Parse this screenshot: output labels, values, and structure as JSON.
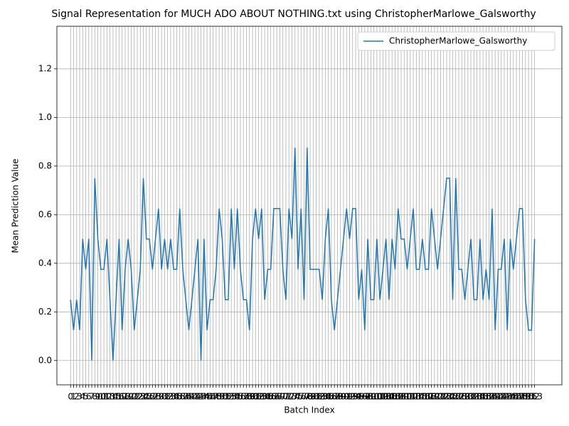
{
  "chart_data": {
    "type": "line",
    "title": "Signal Representation for MUCH ADO ABOUT NOTHING.txt using ChristopherMarlowe_Galsworthy",
    "xlabel": "Batch Index",
    "ylabel": "Mean Prediction Value",
    "x": [
      0,
      1,
      2,
      3,
      4,
      5,
      6,
      7,
      8,
      9,
      10,
      11,
      12,
      13,
      14,
      15,
      16,
      17,
      18,
      19,
      20,
      21,
      22,
      23,
      24,
      25,
      26,
      27,
      28,
      29,
      30,
      31,
      32,
      33,
      34,
      35,
      36,
      37,
      38,
      39,
      40,
      41,
      42,
      43,
      44,
      45,
      46,
      47,
      48,
      49,
      50,
      51,
      52,
      53,
      54,
      55,
      56,
      57,
      58,
      59,
      60,
      61,
      62,
      63,
      64,
      65,
      66,
      67,
      68,
      69,
      70,
      71,
      72,
      73,
      74,
      75,
      76,
      77,
      78,
      79,
      80,
      81,
      82,
      83,
      84,
      85,
      86,
      87,
      88,
      89,
      90,
      91,
      92,
      93,
      94,
      95,
      96,
      97,
      98,
      99,
      100,
      101,
      102,
      103,
      104,
      105,
      106,
      107,
      108,
      109,
      110,
      111,
      112,
      113,
      114,
      115,
      116,
      117,
      118,
      119,
      120,
      121,
      122,
      123,
      124,
      125,
      126,
      127,
      128,
      129,
      130,
      131,
      132,
      133,
      134,
      135,
      136,
      137,
      138,
      139,
      140,
      141,
      142,
      143,
      144,
      145,
      146,
      147,
      148,
      149,
      150,
      151,
      152,
      153
    ],
    "series": [
      {
        "name": "ChristopherMarlowe_Galsworthy",
        "color": "#1f77b4",
        "values": [
          0.25,
          0.125,
          0.25,
          0.125,
          0.5,
          0.375,
          0.5,
          0.0,
          0.75,
          0.5,
          0.375,
          0.375,
          0.5,
          0.25,
          0.0,
          0.25,
          0.5,
          0.125,
          0.375,
          0.5,
          0.375,
          0.125,
          0.25,
          0.375,
          0.75,
          0.5,
          0.5,
          0.375,
          0.5,
          0.625,
          0.375,
          0.5,
          0.375,
          0.5,
          0.375,
          0.375,
          0.625,
          0.375,
          0.25,
          0.125,
          0.25,
          0.375,
          0.5,
          0.0,
          0.5,
          0.125,
          0.25,
          0.25,
          0.375,
          0.625,
          0.5,
          0.25,
          0.25,
          0.625,
          0.375,
          0.625,
          0.375,
          0.25,
          0.25,
          0.125,
          0.5,
          0.625,
          0.5,
          0.625,
          0.25,
          0.375,
          0.375,
          0.625,
          0.625,
          0.625,
          0.375,
          0.25,
          0.625,
          0.5,
          0.875,
          0.375,
          0.625,
          0.25,
          0.875,
          0.375,
          0.375,
          0.375,
          0.375,
          0.25,
          0.5,
          0.625,
          0.25,
          0.125,
          0.25,
          0.375,
          0.5,
          0.625,
          0.5,
          0.625,
          0.625,
          0.25,
          0.375,
          0.125,
          0.5,
          0.25,
          0.25,
          0.5,
          0.25,
          0.375,
          0.5,
          0.25,
          0.5,
          0.375,
          0.625,
          0.5,
          0.5,
          0.375,
          0.5,
          0.625,
          0.375,
          0.375,
          0.5,
          0.375,
          0.375,
          0.625,
          0.5,
          0.375,
          0.5,
          0.625,
          0.75,
          0.75,
          0.25,
          0.75,
          0.375,
          0.375,
          0.25,
          0.375,
          0.5,
          0.25,
          0.25,
          0.5,
          0.25,
          0.375,
          0.25,
          0.625,
          0.125,
          0.375,
          0.375,
          0.5,
          0.125,
          0.5,
          0.375,
          0.5,
          0.625,
          0.625,
          0.25,
          0.125,
          0.125,
          0.5
        ]
      }
    ],
    "xlim": [
      -4.5,
      162
    ],
    "xticks": [
      0,
      1,
      2,
      3,
      4,
      5,
      6,
      7,
      8,
      9,
      10,
      11,
      12,
      13,
      14,
      15,
      16,
      17,
      18,
      19,
      20,
      21,
      22,
      23,
      24,
      25,
      26,
      27,
      28,
      29,
      30,
      31,
      32,
      33,
      34,
      35,
      36,
      37,
      38,
      39,
      40,
      41,
      42,
      43,
      44,
      45,
      46,
      47,
      48,
      49,
      50,
      51,
      52,
      53,
      54,
      55,
      56,
      57,
      58,
      59,
      60,
      61,
      62,
      63,
      64,
      65,
      66,
      67,
      68,
      69,
      70,
      71,
      72,
      73,
      74,
      75,
      76,
      77,
      78,
      79,
      80,
      81,
      82,
      83,
      84,
      85,
      86,
      87,
      88,
      89,
      90,
      91,
      92,
      93,
      94,
      95,
      96,
      97,
      98,
      99,
      100,
      101,
      102,
      103,
      104,
      105,
      106,
      107,
      108,
      109,
      110,
      111,
      112,
      113,
      114,
      115,
      116,
      117,
      118,
      119,
      120,
      121,
      122,
      123,
      124,
      125,
      126,
      127,
      128,
      129,
      130,
      131,
      132,
      133,
      134,
      135,
      136,
      137,
      138,
      139,
      140,
      141,
      142,
      143,
      144,
      145,
      146,
      147,
      148,
      149,
      150,
      151,
      152,
      153
    ],
    "ylim": [
      -0.1,
      1.375
    ],
    "yticks": [
      {
        "value": 0,
        "label": "0.0"
      },
      0.2,
      0.4,
      0.6,
      0.8,
      {
        "value": 1,
        "label": "1.0"
      },
      1.2
    ],
    "grid": true,
    "legend": "upper right"
  }
}
